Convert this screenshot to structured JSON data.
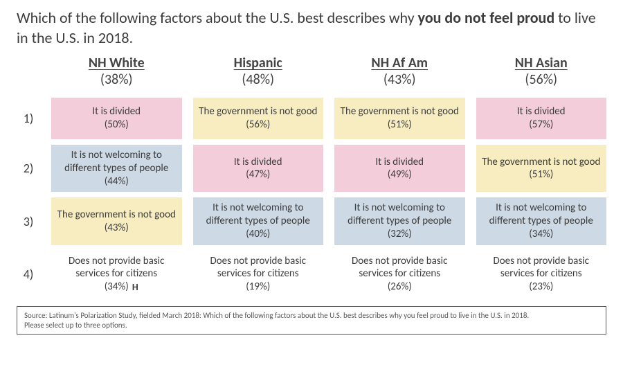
{
  "title_prefix": "Which of the following factors about the U.S. best describes why ",
  "title_bold": "you do not feel proud",
  "title_suffix": " to live in the U.S. in 2018.",
  "colors": {
    "divided": "#f4cdda",
    "gov_not_good": "#f7edc0",
    "not_welcoming": "#cddae5",
    "basic_services": "#ffffff",
    "background": "#ffffff",
    "text": "#3c3c3c",
    "border": "#555555"
  },
  "columns": [
    {
      "name": "NH White",
      "pct": "(38%)"
    },
    {
      "name": "Hispanic",
      "pct": "(48%)"
    },
    {
      "name": "NH Af Am",
      "pct": "(43%)"
    },
    {
      "name": "NH Asian",
      "pct": "(56%)"
    }
  ],
  "row_labels": [
    "1)",
    "2)",
    "3)",
    "4)"
  ],
  "cells": [
    [
      {
        "label": "It is divided",
        "pct": "(50%)",
        "color_key": "divided"
      },
      {
        "label": "The government is not good",
        "pct": "(56%)",
        "color_key": "gov_not_good"
      },
      {
        "label": "The government is not good",
        "pct": "(51%)",
        "color_key": "gov_not_good"
      },
      {
        "label": "It is divided",
        "pct": "(57%)",
        "color_key": "divided"
      }
    ],
    [
      {
        "label": "It is not welcoming to different types of people",
        "pct": "(44%)",
        "color_key": "not_welcoming"
      },
      {
        "label": "It is divided",
        "pct": "(47%)",
        "color_key": "divided"
      },
      {
        "label": "It is divided",
        "pct": "(49%)",
        "color_key": "divided"
      },
      {
        "label": "The government is not good",
        "pct": "(51%)",
        "color_key": "gov_not_good"
      }
    ],
    [
      {
        "label": "The government is not good",
        "pct": "(43%)",
        "color_key": "gov_not_good"
      },
      {
        "label": "It is not welcoming to different types of people",
        "pct": "(40%)",
        "color_key": "not_welcoming"
      },
      {
        "label": "It is not welcoming to different types of people",
        "pct": "(32%)",
        "color_key": "not_welcoming"
      },
      {
        "label": "It is not welcoming to different types of people",
        "pct": "(34%)",
        "color_key": "not_welcoming"
      }
    ],
    [
      {
        "label": "Does not provide basic services for citizens",
        "pct": "(34%)",
        "color_key": "basic_services",
        "marker": "H"
      },
      {
        "label": "Does not provide basic services for citizens",
        "pct": "(19%)",
        "color_key": "basic_services"
      },
      {
        "label": "Does not provide basic services for citizens",
        "pct": "(26%)",
        "color_key": "basic_services"
      },
      {
        "label": "Does not provide basic services for citizens",
        "pct": "(23%)",
        "color_key": "basic_services"
      }
    ]
  ],
  "source_line1": "Source: Latinum's Polarization Study, fielded March 2018: Which of the following factors about the U.S. best describes why you feel proud to live in the U.S. in 2018.",
  "source_line2": "Please select up to three options."
}
